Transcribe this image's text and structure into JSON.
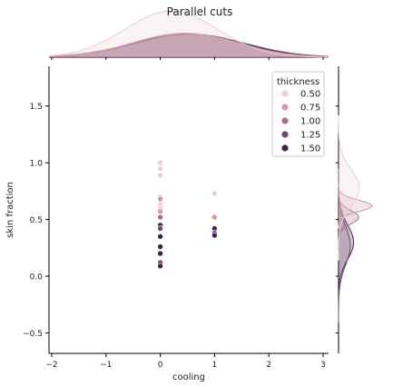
{
  "chart_data": {
    "type": "scatter",
    "title": "Parallel cuts",
    "xlabel": "cooling",
    "ylabel": "skin fraction",
    "xlim": [
      -2.05,
      3.1
    ],
    "ylim": [
      -0.68,
      1.85
    ],
    "xticks": [
      -2,
      -1,
      0,
      1,
      2,
      3
    ],
    "yticks": [
      -0.5,
      0.0,
      0.5,
      1.0,
      1.5
    ],
    "xtick_labels": [
      "−2",
      "−1",
      "0",
      "1",
      "2",
      "3"
    ],
    "ytick_labels": [
      "−0.5",
      "0.0",
      "0.5",
      "1.0",
      "1.5"
    ],
    "grid": false,
    "legend": {
      "title": "thickness",
      "placement": "top-right",
      "entries": [
        {
          "label": "0.50",
          "color": "#eccfd4"
        },
        {
          "label": "0.75",
          "color": "#d19aa8"
        },
        {
          "label": "1.00",
          "color": "#a9708e"
        },
        {
          "label": "1.25",
          "color": "#74476f"
        },
        {
          "label": "1.50",
          "color": "#3f2547"
        }
      ]
    },
    "points": [
      {
        "x": 0,
        "y": 1.0,
        "thickness": 0.5
      },
      {
        "x": 0,
        "y": 0.95,
        "thickness": 0.5
      },
      {
        "x": 0,
        "y": 0.89,
        "thickness": 0.5
      },
      {
        "x": 0,
        "y": 0.7,
        "thickness": 0.5
      },
      {
        "x": 0,
        "y": 0.68,
        "thickness": 0.75
      },
      {
        "x": 0,
        "y": 0.63,
        "thickness": 0.5
      },
      {
        "x": 0,
        "y": 0.6,
        "thickness": 0.5
      },
      {
        "x": 0,
        "y": 0.57,
        "thickness": 0.75
      },
      {
        "x": 0,
        "y": 0.52,
        "thickness": 1.0
      },
      {
        "x": 0,
        "y": 0.45,
        "thickness": 1.5
      },
      {
        "x": 0,
        "y": 0.42,
        "thickness": 1.25
      },
      {
        "x": 0,
        "y": 0.35,
        "thickness": 1.5
      },
      {
        "x": 0,
        "y": 0.26,
        "thickness": 1.5
      },
      {
        "x": 0,
        "y": 0.2,
        "thickness": 1.5
      },
      {
        "x": 0,
        "y": 0.12,
        "thickness": 1.25
      },
      {
        "x": 0,
        "y": 0.09,
        "thickness": 1.5
      },
      {
        "x": 1,
        "y": 0.73,
        "thickness": 0.5
      },
      {
        "x": 1,
        "y": 0.52,
        "thickness": 0.75
      },
      {
        "x": 1,
        "y": 0.42,
        "thickness": 1.5
      },
      {
        "x": 1,
        "y": 0.38,
        "thickness": 1.25
      },
      {
        "x": 1,
        "y": 0.36,
        "thickness": 1.5
      }
    ],
    "marginal_x": {
      "type": "kde",
      "series": [
        {
          "thickness": 0.5,
          "peak_x": 0.2,
          "sd": 0.85,
          "peak_height": 1.0,
          "color": "#eccfd4"
        },
        {
          "thickness": 0.75,
          "peak_x": 0.45,
          "sd": 0.95,
          "peak_height": 0.52,
          "color": "#d19aa8"
        },
        {
          "thickness": 1.0,
          "peak_x": 0.5,
          "sd": 0.95,
          "peak_height": 0.5,
          "color": "#a9708e"
        },
        {
          "thickness": 1.25,
          "peak_x": 0.55,
          "sd": 1.0,
          "peak_height": 0.5,
          "color": "#74476f"
        },
        {
          "thickness": 1.5,
          "peak_x": 0.5,
          "sd": 1.0,
          "peak_height": 0.5,
          "color": "#3f2547"
        }
      ]
    },
    "marginal_y": {
      "type": "kde",
      "series": [
        {
          "thickness": 0.5,
          "peak_y": 0.78,
          "sd": 0.16,
          "peak_height": 0.62,
          "color": "#eccfd4"
        },
        {
          "thickness": 0.75,
          "peak_y": 0.62,
          "sd": 0.05,
          "peak_height": 1.0,
          "color": "#d19aa8"
        },
        {
          "thickness": 1.0,
          "peak_y": 0.52,
          "sd": 0.06,
          "peak_height": 0.6,
          "color": "#a9708e"
        },
        {
          "thickness": 1.25,
          "peak_y": 0.27,
          "sd": 0.17,
          "peak_height": 0.35,
          "color": "#74476f"
        },
        {
          "thickness": 1.5,
          "peak_y": 0.3,
          "sd": 0.15,
          "peak_height": 0.45,
          "color": "#3f2547"
        }
      ]
    }
  }
}
